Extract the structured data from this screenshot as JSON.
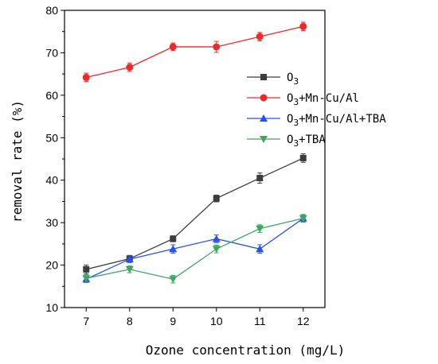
{
  "chart_data": {
    "type": "line",
    "xlabel": "Ozone concentration (mg/L)",
    "ylabel": "removal rate (%)",
    "x": [
      7,
      8,
      9,
      10,
      11,
      12
    ],
    "xlim": [
      6.5,
      12.5
    ],
    "ylim": [
      10,
      80
    ],
    "xticks": [
      "7",
      "8",
      "9",
      "10",
      "11",
      "12"
    ],
    "yticks": [
      "10",
      "20",
      "30",
      "40",
      "50",
      "60",
      "70",
      "80"
    ],
    "grid": false,
    "legend_position": "center-right",
    "series": [
      {
        "name": "O3",
        "label_main": "O",
        "label_sub": "3",
        "label_rest": "",
        "color": "#3c3c3c",
        "marker": "square",
        "values": [
          19,
          21.5,
          26.2,
          35.7,
          40.5,
          45.2
        ],
        "errors": [
          1.0,
          0.8,
          0.7,
          0.8,
          1.2,
          1.0
        ]
      },
      {
        "name": "O3+Mn-Cu/Al",
        "label_main": "O",
        "label_sub": "3",
        "label_rest": "+Mn-Cu/Al",
        "color": "#f02828",
        "marker": "circle",
        "values": [
          64.2,
          66.6,
          71.4,
          71.4,
          73.8,
          76.2
        ],
        "errors": [
          1.0,
          1.0,
          0.9,
          1.3,
          1.0,
          1.0
        ]
      },
      {
        "name": "O3+Mn-Cu/Al+TBA",
        "label_main": "O",
        "label_sub": "3",
        "label_rest": "+Mn-Cu/Al+TBA",
        "color": "#2850f0",
        "marker": "triangle-up",
        "values": [
          16.7,
          21.4,
          23.8,
          26.2,
          23.8,
          31
        ],
        "errors": [
          0.8,
          0.8,
          1.0,
          0.9,
          1.0,
          0.9
        ]
      },
      {
        "name": "O3+TBA",
        "label_main": "O",
        "label_sub": "3",
        "label_rest": "+TBA",
        "color": "#3aa860",
        "marker": "triangle-down",
        "values": [
          16.9,
          19,
          16.7,
          23.8,
          28.6,
          31
        ],
        "errors": [
          0.9,
          0.8,
          0.9,
          0.9,
          0.9,
          0.8
        ]
      }
    ]
  }
}
